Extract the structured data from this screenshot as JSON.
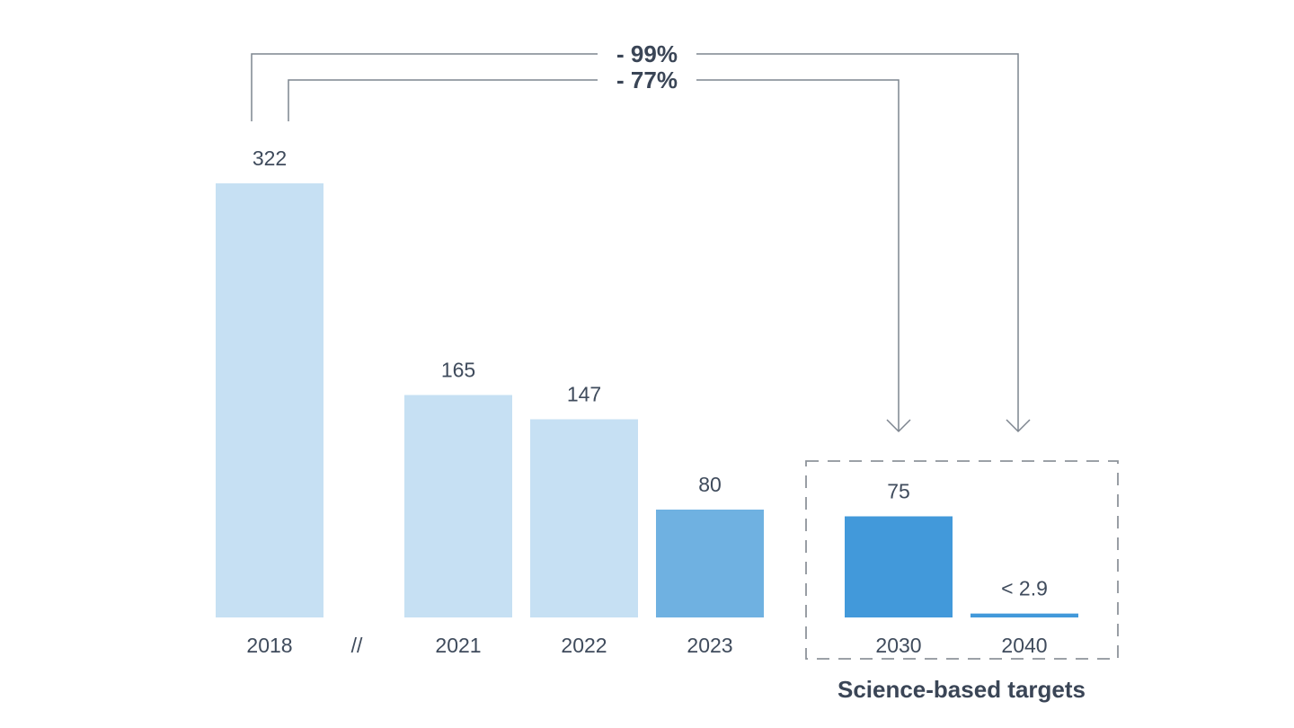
{
  "chart_data": {
    "type": "bar",
    "categories": [
      "2018",
      "2021",
      "2022",
      "2023",
      "2030",
      "2040"
    ],
    "values": [
      322,
      165,
      147,
      80,
      75,
      2.9
    ],
    "value_labels": [
      "322",
      "165",
      "147",
      "80",
      "75",
      "< 2.9"
    ],
    "axis_break_label": "//",
    "bar_colors": [
      "#c6e0f3",
      "#c6e0f3",
      "#c6e0f3",
      "#6fb1e1",
      "#4299da",
      "#4299da"
    ],
    "ylim": [
      0,
      322
    ],
    "grid": false,
    "title": "",
    "xlabel": "",
    "ylabel": "",
    "annotations": [
      {
        "label": "- 99%",
        "from": "2018",
        "to": "2040"
      },
      {
        "label": "- 77%",
        "from": "2018",
        "to": "2030"
      }
    ],
    "target_group": {
      "label": "Science-based targets",
      "categories": [
        "2030",
        "2040"
      ]
    }
  }
}
